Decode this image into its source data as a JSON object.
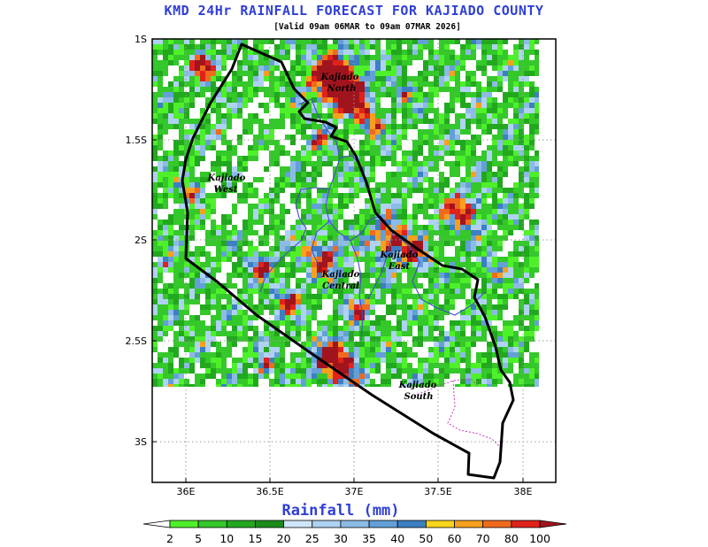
{
  "title": "KMD 24Hr RAINFALL FORECAST FOR KAJIADO COUNTY",
  "subtitle": "[Valid 09am 06MAR to 09am 07MAR 2026]",
  "map": {
    "lat_ticks": [
      "1S",
      "1.5S",
      "2S",
      "2.5S",
      "3S"
    ],
    "lon_ticks": [
      "36E",
      "36.5E",
      "37E",
      "37.5E",
      "38E"
    ],
    "grid": "dotted",
    "regions": [
      {
        "name": "Kajiado North",
        "line1": "Kajiado",
        "line2": "North"
      },
      {
        "name": "Kajiado West",
        "line1": "Kajiado",
        "line2": "West"
      },
      {
        "name": "Kajiado East",
        "line1": "Kajiado",
        "line2": "East"
      },
      {
        "name": "Kajiado Central",
        "line1": "Kajiado",
        "line2": "Central"
      },
      {
        "name": "Kajiado South",
        "line1": "Kajiado",
        "line2": "South"
      }
    ]
  },
  "colorbar": {
    "title": "Rainfall (mm)",
    "levels": [
      "2",
      "5",
      "10",
      "15",
      "20",
      "25",
      "30",
      "35",
      "40",
      "50",
      "60",
      "70",
      "80",
      "100"
    ],
    "colors": [
      "#ffffff",
      "#4ef02a",
      "#34c82a",
      "#22a81f",
      "#1a8c1a",
      "#cfe6f8",
      "#afd2f2",
      "#8cbbe6",
      "#63a0d8",
      "#3c7fc2",
      "#fbd41c",
      "#f8a01e",
      "#f06a1e",
      "#e0221c",
      "#a0141e"
    ]
  }
}
